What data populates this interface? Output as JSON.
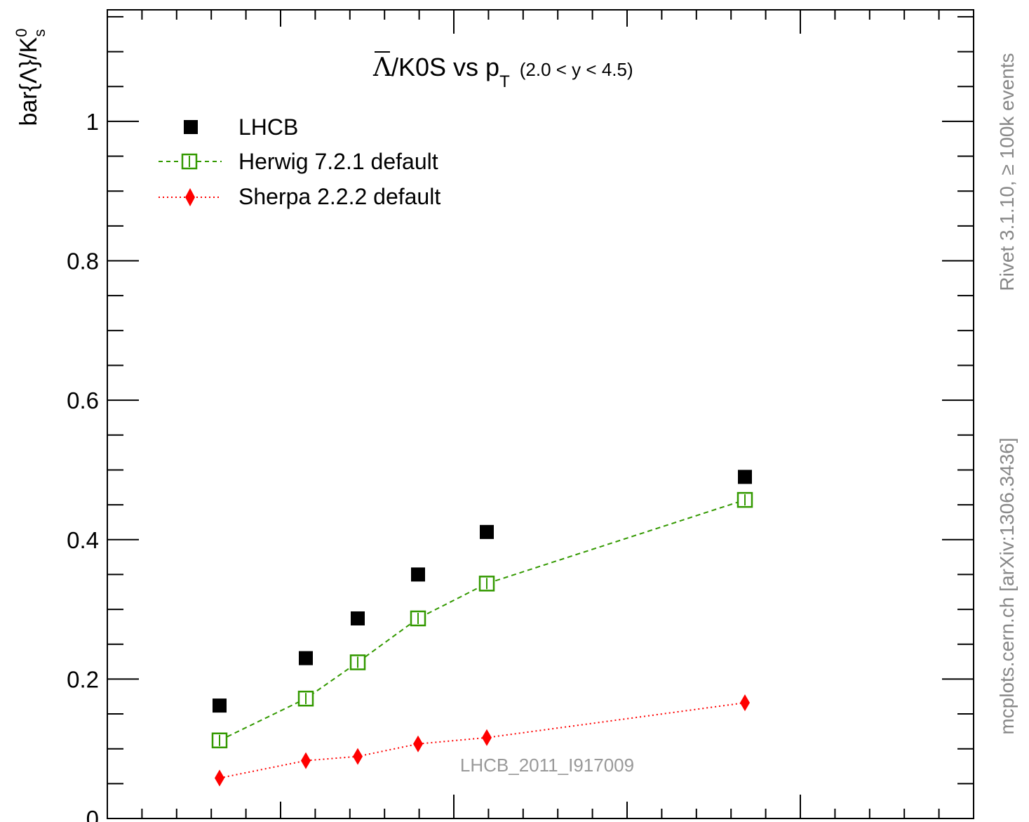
{
  "chart_data": {
    "type": "scatter",
    "title_symbol": "Λ",
    "title_main": "/K0S vs p",
    "title_sub_T": "T",
    "title_rapidity": "(2.0 < y < 4.5)",
    "ylabel_main": "bar{Λ}/K",
    "ylabel_sup": "0",
    "ylabel_sub": "s",
    "ylim": [
      0,
      1.16
    ],
    "y_ticks": [
      {
        "value": 0,
        "label": "0"
      },
      {
        "value": 0.2,
        "label": "0.2"
      },
      {
        "value": 0.4,
        "label": "0.4"
      },
      {
        "value": 0.6,
        "label": "0.6"
      },
      {
        "value": 0.8,
        "label": "0.8"
      },
      {
        "value": 1.0,
        "label": "1"
      }
    ],
    "series": [
      {
        "name": "LHCB",
        "color": "#000000",
        "marker": "filled-square",
        "line": "none",
        "points": [
          [
            0.162,
            0.162
          ],
          [
            0.23,
            0.23
          ],
          [
            0.287,
            0.287
          ],
          [
            0.35,
            0.35
          ],
          [
            0.411,
            0.411
          ],
          [
            0.49,
            0.49
          ]
        ]
      },
      {
        "name": "Herwig 7.2.1 default",
        "color": "#339900",
        "marker": "open-square",
        "line": "dashed",
        "points": [
          [
            0.112,
            0.112
          ],
          [
            0.172,
            0.172
          ],
          [
            0.224,
            0.224
          ],
          [
            0.287,
            0.287
          ],
          [
            0.337,
            0.337
          ],
          [
            0.457,
            0.457
          ]
        ]
      },
      {
        "name": "Sherpa 2.2.2 default",
        "color": "#ff0000",
        "marker": "diamond",
        "line": "dotted",
        "points": [
          [
            0.058,
            0.058
          ],
          [
            0.083,
            0.083
          ],
          [
            0.089,
            0.089
          ],
          [
            0.107,
            0.107
          ],
          [
            0.116,
            0.116
          ],
          [
            0.166,
            0.166
          ]
        ]
      }
    ],
    "legend_position": "top-left",
    "grid": false
  },
  "side_label_top": "Rivet 3.1.10, ≥ 100k events",
  "side_label_bottom": "mcplots.cern.ch [arXiv:1306.3436]",
  "analysis_watermark": "LHCB_2011_I917009"
}
